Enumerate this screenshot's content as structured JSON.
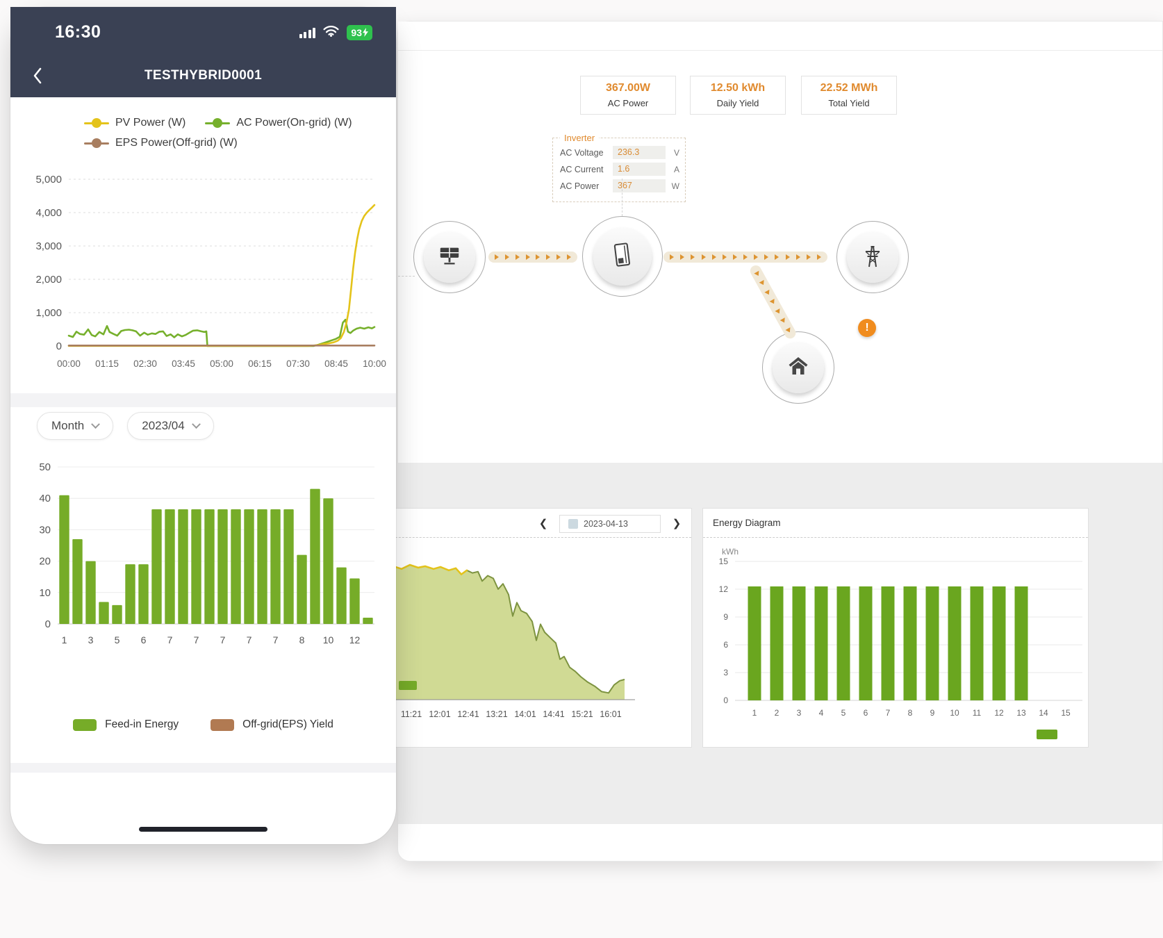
{
  "colors": {
    "accent_orange": "#e08a2e",
    "alert_orange": "#f08c1e",
    "navy": "#3a4154",
    "green": "#76ac28",
    "yellow": "#e4c31a",
    "brown": "#a87e60",
    "battery_green": "#2fc14e"
  },
  "phone": {
    "status": {
      "time": "16:30",
      "battery_percent": "93"
    },
    "nav": {
      "title": "TESTHYBRID0001"
    },
    "line_chart": {
      "type": "line",
      "legend": [
        {
          "label": "PV Power (W)",
          "color": "#e4c31a"
        },
        {
          "label": "AC Power(On-grid) (W)",
          "color": "#76b02c"
        },
        {
          "label": "EPS Power(Off-grid) (W)",
          "color": "#a87e60"
        }
      ],
      "y_ticks": [
        "5,000",
        "4,000",
        "3,000",
        "2,000",
        "1,000",
        "0"
      ],
      "ylim": [
        0,
        5000
      ],
      "x_ticks": [
        "00:00",
        "01:15",
        "02:30",
        "03:45",
        "05:00",
        "06:15",
        "07:30",
        "08:45",
        "10:00"
      ],
      "xlim": [
        0,
        600
      ],
      "series": [
        {
          "name": "AC Power(On-grid) (W)",
          "color": "#76b02c",
          "points": [
            [
              0,
              310
            ],
            [
              8,
              270
            ],
            [
              15,
              430
            ],
            [
              22,
              360
            ],
            [
              30,
              340
            ],
            [
              38,
              500
            ],
            [
              45,
              330
            ],
            [
              52,
              290
            ],
            [
              60,
              420
            ],
            [
              68,
              350
            ],
            [
              75,
              600
            ],
            [
              80,
              420
            ],
            [
              88,
              360
            ],
            [
              95,
              310
            ],
            [
              103,
              450
            ],
            [
              110,
              480
            ],
            [
              118,
              490
            ],
            [
              125,
              470
            ],
            [
              132,
              440
            ],
            [
              140,
              310
            ],
            [
              148,
              400
            ],
            [
              155,
              340
            ],
            [
              163,
              380
            ],
            [
              170,
              360
            ],
            [
              178,
              430
            ],
            [
              185,
              440
            ],
            [
              192,
              300
            ],
            [
              200,
              350
            ],
            [
              207,
              260
            ],
            [
              214,
              350
            ],
            [
              222,
              290
            ],
            [
              229,
              330
            ],
            [
              237,
              400
            ],
            [
              244,
              460
            ],
            [
              252,
              470
            ],
            [
              260,
              440
            ],
            [
              266,
              420
            ],
            [
              270,
              440
            ],
            [
              272,
              0
            ],
            [
              480,
              0
            ],
            [
              490,
              40
            ],
            [
              500,
              90
            ],
            [
              508,
              130
            ],
            [
              516,
              170
            ],
            [
              524,
              210
            ],
            [
              532,
              280
            ],
            [
              538,
              700
            ],
            [
              543,
              790
            ],
            [
              548,
              430
            ],
            [
              553,
              390
            ],
            [
              558,
              460
            ],
            [
              565,
              520
            ],
            [
              572,
              550
            ],
            [
              580,
              520
            ],
            [
              588,
              560
            ],
            [
              595,
              530
            ],
            [
              600,
              570
            ]
          ]
        },
        {
          "name": "PV Power (W)",
          "color": "#e4c31a",
          "points": [
            [
              0,
              5
            ],
            [
              470,
              5
            ],
            [
              480,
              15
            ],
            [
              490,
              30
            ],
            [
              500,
              60
            ],
            [
              510,
              80
            ],
            [
              520,
              110
            ],
            [
              528,
              160
            ],
            [
              534,
              240
            ],
            [
              540,
              420
            ],
            [
              545,
              700
            ],
            [
              550,
              1100
            ],
            [
              554,
              1700
            ],
            [
              558,
              2300
            ],
            [
              562,
              2800
            ],
            [
              566,
              3200
            ],
            [
              570,
              3500
            ],
            [
              575,
              3750
            ],
            [
              580,
              3900
            ],
            [
              585,
              4000
            ],
            [
              590,
              4080
            ],
            [
              595,
              4150
            ],
            [
              600,
              4230
            ]
          ]
        },
        {
          "name": "EPS Power(Off-grid) (W)",
          "color": "#a87e60",
          "points": [
            [
              0,
              15
            ],
            [
              600,
              15
            ]
          ]
        }
      ]
    },
    "filters": {
      "period": "Month",
      "month": "2023/04"
    },
    "bar_chart": {
      "type": "bar",
      "color": "#76ac28",
      "y_ticks": [
        "50",
        "40",
        "30",
        "20",
        "10",
        "0"
      ],
      "ylim": [
        0,
        50
      ],
      "values": [
        41,
        27,
        20,
        7,
        6,
        19,
        19,
        36.5,
        36.5,
        36.5,
        36.5,
        36.5,
        36.5,
        36.5,
        36.5,
        36.5,
        36.5,
        36.5,
        22,
        43,
        40,
        18,
        14.5,
        2
      ],
      "x_labels": [
        "1",
        "3",
        "5",
        "6",
        "7",
        "7",
        "7",
        "7",
        "7",
        "8",
        "10",
        "12"
      ],
      "legend": [
        {
          "label": "Feed-in Energy",
          "color": "#76ac28"
        },
        {
          "label": "Off-grid(EPS) Yield",
          "color": "#b17a52"
        }
      ]
    }
  },
  "desktop": {
    "stats": [
      {
        "value": "367.00W",
        "label": "AC Power"
      },
      {
        "value": "12.50 kWh",
        "label": "Daily Yield"
      },
      {
        "value": "22.52 MWh",
        "label": "Total Yield"
      }
    ],
    "inverter": {
      "title": "Inverter",
      "rows": [
        {
          "label": "AC Voltage",
          "value": "236.3",
          "unit": "V"
        },
        {
          "label": "AC Current",
          "value": "1.6",
          "unit": "A"
        },
        {
          "label": "AC Power",
          "value": "367",
          "unit": "W"
        }
      ]
    },
    "flow": {
      "alert": "!",
      "nodes": [
        "pv-array",
        "inverter",
        "power-grid",
        "home"
      ]
    },
    "day_panel": {
      "date": "2023-04-13",
      "chart": {
        "type": "area",
        "color_fill": "#cdd88e",
        "color_stroke": "#7d9340",
        "color_top": "#e4c31a",
        "x_ticks": [
          "11:21",
          "12:01",
          "12:41",
          "13:21",
          "14:01",
          "14:41",
          "15:21",
          "16:01"
        ],
        "points": [
          [
            0,
            0.97
          ],
          [
            12,
            0.99
          ],
          [
            24,
            0.97
          ],
          [
            36,
            1.0
          ],
          [
            48,
            0.98
          ],
          [
            58,
            0.99
          ],
          [
            70,
            0.97
          ],
          [
            80,
            0.985
          ],
          [
            92,
            0.96
          ],
          [
            102,
            0.975
          ],
          [
            110,
            0.93
          ],
          [
            118,
            0.96
          ],
          [
            126,
            0.94
          ],
          [
            134,
            0.95
          ],
          [
            140,
            0.88
          ],
          [
            148,
            0.92
          ],
          [
            156,
            0.9
          ],
          [
            163,
            0.82
          ],
          [
            170,
            0.86
          ],
          [
            178,
            0.78
          ],
          [
            184,
            0.62
          ],
          [
            190,
            0.72
          ],
          [
            196,
            0.66
          ],
          [
            204,
            0.64
          ],
          [
            212,
            0.58
          ],
          [
            218,
            0.44
          ],
          [
            224,
            0.56
          ],
          [
            230,
            0.5
          ],
          [
            238,
            0.46
          ],
          [
            246,
            0.42
          ],
          [
            252,
            0.3
          ],
          [
            258,
            0.32
          ],
          [
            266,
            0.24
          ],
          [
            274,
            0.21
          ],
          [
            282,
            0.17
          ],
          [
            292,
            0.13
          ],
          [
            302,
            0.1
          ],
          [
            312,
            0.06
          ],
          [
            322,
            0.05
          ],
          [
            330,
            0.11
          ],
          [
            338,
            0.14
          ],
          [
            345,
            0.15
          ]
        ]
      }
    },
    "energy_panel": {
      "title": "Energy Diagram",
      "chart": {
        "type": "bar",
        "unit": "kWh",
        "color": "#6aa61f",
        "y_ticks": [
          "15",
          "12",
          "9",
          "6",
          "3",
          "0"
        ],
        "ylim": [
          0,
          15
        ],
        "x_ticks": [
          "1",
          "2",
          "3",
          "4",
          "5",
          "6",
          "7",
          "8",
          "9",
          "10",
          "11",
          "12",
          "13",
          "14",
          "15"
        ],
        "values": [
          12.3,
          12.3,
          12.3,
          12.3,
          12.3,
          12.3,
          12.3,
          12.3,
          12.3,
          12.3,
          12.3,
          12.3,
          12.3
        ]
      }
    }
  }
}
